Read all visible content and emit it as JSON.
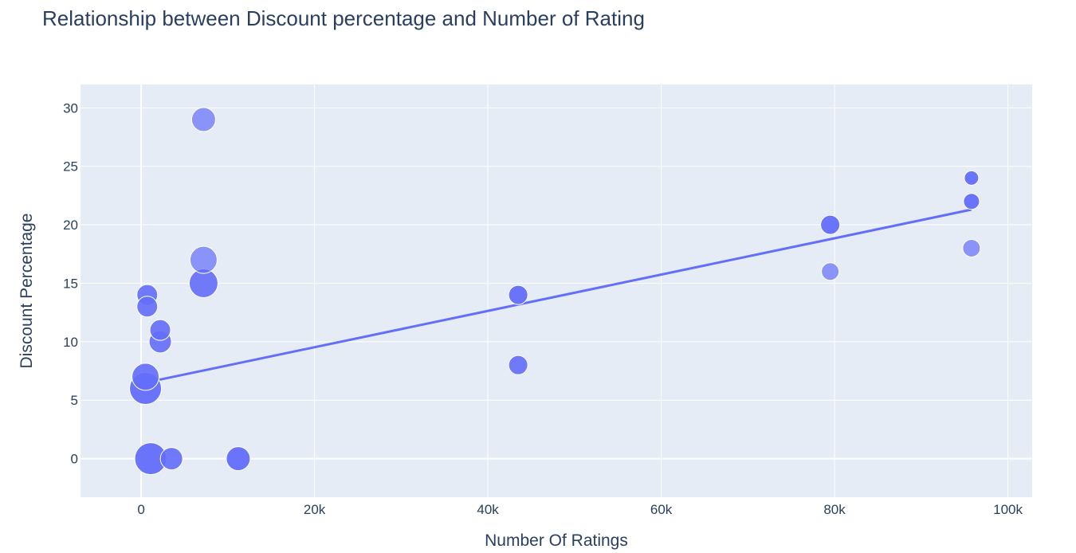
{
  "chart_data": {
    "type": "scatter",
    "title": "Relationship between Discount percentage and Number of Rating",
    "xlabel": "Number Of Ratings",
    "ylabel": "Discount Percentage",
    "xlim": [
      -7000,
      102800
    ],
    "ylim": [
      -3.3,
      32
    ],
    "x_ticks": [
      0,
      20000,
      40000,
      60000,
      80000,
      100000
    ],
    "x_tick_labels": [
      "0",
      "20k",
      "40k",
      "60k",
      "80k",
      "100k"
    ],
    "y_ticks": [
      0,
      5,
      10,
      15,
      20,
      25,
      30
    ],
    "y_tick_labels": [
      "0",
      "5",
      "10",
      "15",
      "20",
      "25",
      "30"
    ],
    "grid": true,
    "legend": false,
    "colors": {
      "plot_bg": "#e5ecf6",
      "grid": "#ffffff",
      "marker": "#636efa",
      "trendline": "#636efa",
      "text": "#2a3f5f"
    },
    "series": [
      {
        "points": [
          {
            "x": 7200,
            "y": 29,
            "size": 15,
            "opacity": 0.7
          },
          {
            "x": 7200,
            "y": 17,
            "size": 17,
            "opacity": 0.7
          },
          {
            "x": 7200,
            "y": 15,
            "size": 18,
            "opacity": 0.9
          },
          {
            "x": 700,
            "y": 14,
            "size": 13,
            "opacity": 0.9
          },
          {
            "x": 700,
            "y": 13,
            "size": 13,
            "opacity": 0.9
          },
          {
            "x": 2200,
            "y": 11,
            "size": 13,
            "opacity": 0.9
          },
          {
            "x": 2200,
            "y": 10,
            "size": 14,
            "opacity": 0.9
          },
          {
            "x": 500,
            "y": 7,
            "size": 17,
            "opacity": 0.9
          },
          {
            "x": 500,
            "y": 6,
            "size": 20,
            "opacity": 0.95
          },
          {
            "x": 1100,
            "y": 0,
            "size": 20,
            "opacity": 0.95
          },
          {
            "x": 3500,
            "y": 0,
            "size": 14,
            "opacity": 0.9
          },
          {
            "x": 11200,
            "y": 0,
            "size": 15,
            "opacity": 0.95
          },
          {
            "x": 43500,
            "y": 14,
            "size": 12,
            "opacity": 0.95
          },
          {
            "x": 43500,
            "y": 8,
            "size": 12,
            "opacity": 0.9
          },
          {
            "x": 79500,
            "y": 20,
            "size": 12,
            "opacity": 0.95
          },
          {
            "x": 79500,
            "y": 16,
            "size": 11,
            "opacity": 0.7
          },
          {
            "x": 95800,
            "y": 24,
            "size": 9,
            "opacity": 0.95
          },
          {
            "x": 95800,
            "y": 22,
            "size": 10,
            "opacity": 0.95
          },
          {
            "x": 95800,
            "y": 18,
            "size": 11,
            "opacity": 0.7
          }
        ]
      }
    ],
    "trendline": {
      "x": [
        500,
        95800
      ],
      "y": [
        6.5,
        21.3
      ]
    }
  }
}
